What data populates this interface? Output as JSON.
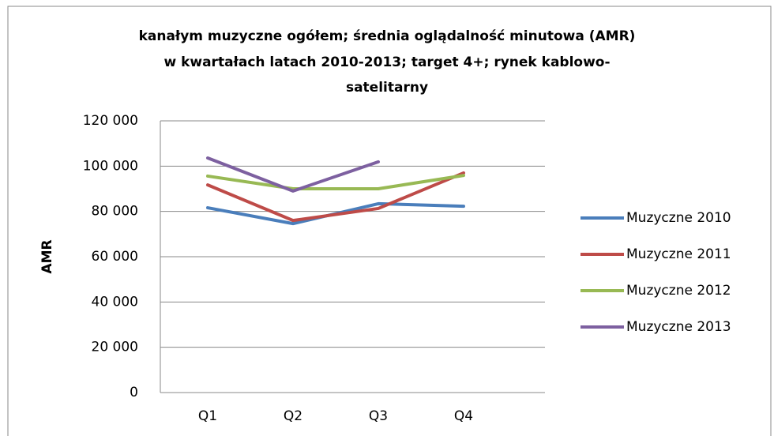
{
  "chart_data": {
    "type": "line",
    "title": [
      "kanałym muzyczne ogółem; średnia oglądalność minutowa (AMR)",
      "w kwartałach latach 2010-2013; target 4+; rynek kablowo-",
      "satelitarny"
    ],
    "y_label": "AMR",
    "categories": [
      "Q1",
      "Q2",
      "Q3",
      "Q4"
    ],
    "series": [
      {
        "name": "Muzyczne 2010",
        "color": "#4a7ebb",
        "values": [
          81600,
          74600,
          83400,
          82300
        ]
      },
      {
        "name": "Muzyczne 2011",
        "color": "#be4b48",
        "values": [
          91700,
          76000,
          81300,
          97000
        ]
      },
      {
        "name": "Muzyczne 2012",
        "color": "#98b954",
        "values": [
          95600,
          90000,
          90000,
          95900
        ]
      },
      {
        "name": "Muzyczne 2013",
        "color": "#7d60a0",
        "values": [
          103600,
          89000,
          101900,
          null
        ]
      }
    ],
    "ylim": [
      0,
      120000
    ],
    "yticks": [
      0,
      {
        "value": 20000,
        "label": "20 000"
      },
      {
        "value": 40000,
        "label": "40 000"
      },
      {
        "value": 60000,
        "label": "60 000"
      },
      {
        "value": 80000,
        "label": "80 000"
      },
      {
        "value": 100000,
        "label": "100 000"
      },
      {
        "value": 120000,
        "label": "120 000"
      }
    ],
    "grid": true,
    "legend": "right"
  }
}
